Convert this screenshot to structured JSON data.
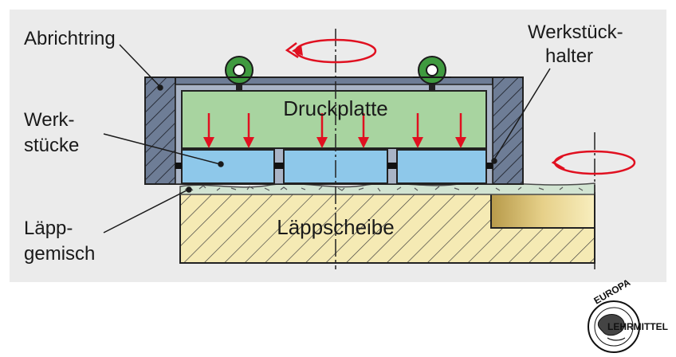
{
  "labels": {
    "abrichtring": "Abrichtring",
    "werkstueckhalter_line1": "Werkstück-",
    "werkstueckhalter_line2": "halter",
    "werkstuecke_line1": "Werk-",
    "werkstuecke_line2": "stücke",
    "laeppgemisch_line1": "Läpp-",
    "laeppgemisch_line2": "gemisch",
    "druckplatte": "Druckplatte",
    "laeppscheibe": "Läppscheibe"
  },
  "logo": {
    "top_text": "EUROPA",
    "side_text": "LEHRMITTEL"
  },
  "colors": {
    "panel_background": "#ebebeb",
    "pressure_plate": "#a8d4a0",
    "workpiece": "#8ec8ea",
    "holder_frame": "#6e7d96",
    "lapping_disc": "#f5eab4",
    "lapping_mixture": "#d2e4d2",
    "force_arrow": "#e01020",
    "rotation_arrow": "#e01020",
    "lifting_eye": "#3f9a3f"
  }
}
